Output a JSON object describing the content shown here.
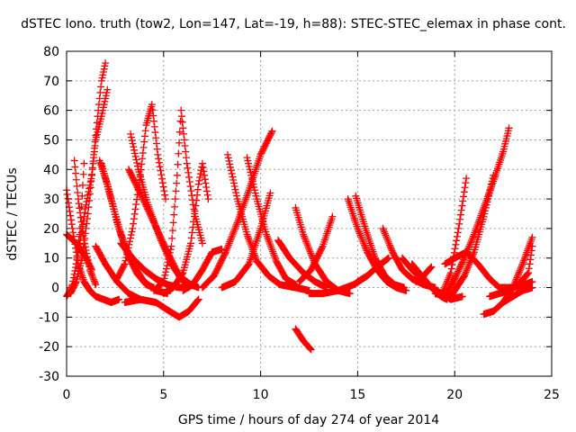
{
  "chart_data": {
    "type": "scatter",
    "title": "dSTEC Iono. truth (tow2, Lon=147, Lat=-19, h=88): STEC-STEC_elemax in phase cont.",
    "xlabel": "GPS time / hours of day 274 of year 2014",
    "ylabel": "dSTEC  / TECUs",
    "xlim": [
      0,
      25
    ],
    "ylim": [
      -30,
      80
    ],
    "xticks": [
      0,
      5,
      10,
      15,
      20,
      25
    ],
    "yticks": [
      -30,
      -20,
      -10,
      0,
      10,
      20,
      30,
      40,
      50,
      60,
      70,
      80
    ],
    "grid": true,
    "marker": "plus",
    "color": "#ff0000",
    "series": [
      {
        "x": [
          0.0,
          0.3,
          0.6,
          0.9,
          1.2,
          1.5,
          1.9,
          2.3,
          2.7
        ],
        "y": [
          33,
          20,
          8,
          2,
          -1,
          -3,
          -4,
          -5,
          -4
        ]
      },
      {
        "x": [
          0.0,
          0.1,
          0.3,
          0.5,
          0.7,
          0.9
        ],
        "y": [
          -3,
          -2,
          1,
          8,
          20,
          42
        ]
      },
      {
        "x": [
          0.0,
          0.5,
          1.0,
          1.3
        ],
        "y": [
          18,
          15,
          10,
          6
        ]
      },
      {
        "x": [
          0.4,
          0.6,
          0.9,
          1.2,
          1.5
        ],
        "y": [
          43,
          30,
          16,
          6,
          1
        ]
      },
      {
        "x": [
          0.2,
          0.5,
          0.8,
          1.1,
          1.4,
          1.6,
          1.8,
          2.0
        ],
        "y": [
          -2,
          2,
          10,
          25,
          45,
          58,
          70,
          76
        ]
      },
      {
        "x": [
          0.5,
          0.8,
          1.0,
          1.3,
          1.5,
          1.8,
          2.1
        ],
        "y": [
          8,
          20,
          28,
          38,
          50,
          58,
          67
        ]
      },
      {
        "x": [
          1.7,
          2.1,
          2.6,
          3.1,
          3.6,
          4.1,
          4.5
        ],
        "y": [
          43,
          35,
          22,
          12,
          5,
          1,
          0
        ]
      },
      {
        "x": [
          1.8,
          2.3,
          2.8,
          3.4,
          4.0,
          4.6,
          5.2
        ],
        "y": [
          42,
          30,
          18,
          8,
          2,
          -1,
          -2
        ]
      },
      {
        "x": [
          1.5,
          2.0,
          2.6,
          3.2,
          3.8
        ],
        "y": [
          14,
          8,
          2,
          -2,
          -4
        ]
      },
      {
        "x": [
          2.6,
          3.0,
          3.4,
          3.8,
          4.1,
          4.4,
          4.7,
          5.1
        ],
        "y": [
          3,
          8,
          20,
          38,
          55,
          62,
          45,
          30
        ]
      },
      {
        "x": [
          3.3,
          3.7,
          4.2,
          4.8,
          5.4,
          6.0,
          6.8
        ],
        "y": [
          52,
          40,
          28,
          17,
          8,
          2,
          0
        ]
      },
      {
        "x": [
          3.2,
          3.8,
          4.5,
          5.2,
          5.8,
          6.4
        ],
        "y": [
          40,
          32,
          22,
          12,
          4,
          1
        ]
      },
      {
        "x": [
          2.8,
          3.4,
          4.0,
          4.6,
          5.2,
          5.8,
          6.3
        ],
        "y": [
          15,
          10,
          6,
          3,
          1,
          0,
          0
        ]
      },
      {
        "x": [
          3.0,
          3.8,
          4.6,
          5.3,
          5.8,
          6.3,
          6.8
        ],
        "y": [
          -5,
          -4,
          -5,
          -8,
          -10,
          -8,
          -4
        ]
      },
      {
        "x": [
          4.5,
          5.0,
          5.4,
          5.7,
          5.9,
          6.2,
          6.6,
          7.0
        ],
        "y": [
          -1,
          2,
          14,
          38,
          60,
          42,
          25,
          15
        ]
      },
      {
        "x": [
          5.0,
          5.5,
          6.0,
          6.4,
          6.8,
          7.0,
          7.3
        ],
        "y": [
          -2,
          0,
          5,
          15,
          35,
          42,
          30
        ]
      },
      {
        "x": [
          6.0,
          6.5,
          7.0,
          7.5,
          8.0
        ],
        "y": [
          -1,
          1,
          6,
          12,
          13
        ]
      },
      {
        "x": [
          7.0,
          7.6,
          8.2,
          8.8,
          9.4,
          10.0,
          10.6
        ],
        "y": [
          0,
          4,
          12,
          22,
          33,
          45,
          53
        ]
      },
      {
        "x": [
          8.3,
          8.8,
          9.3,
          9.8,
          10.4,
          11.0,
          11.8,
          12.5
        ],
        "y": [
          45,
          30,
          18,
          9,
          4,
          1,
          0,
          -1
        ]
      },
      {
        "x": [
          9.3,
          9.8,
          10.3,
          10.8,
          11.3,
          11.8
        ],
        "y": [
          44,
          30,
          18,
          9,
          3,
          1
        ]
      },
      {
        "x": [
          8.0,
          8.7,
          9.4,
          10.0,
          10.5
        ],
        "y": [
          0,
          2,
          8,
          20,
          32
        ]
      },
      {
        "x": [
          10.9,
          11.5,
          12.2,
          12.8,
          13.4
        ],
        "y": [
          16,
          10,
          5,
          2,
          0
        ]
      },
      {
        "x": [
          11.8,
          12.2,
          12.8,
          13.4,
          14.0,
          14.6
        ],
        "y": [
          27,
          18,
          8,
          2,
          -1,
          -2
        ]
      },
      {
        "x": [
          11.8,
          12.2,
          12.6
        ],
        "y": [
          -14,
          -18,
          -21
        ]
      },
      {
        "x": [
          12.0,
          12.6,
          13.2,
          13.7
        ],
        "y": [
          2,
          6,
          14,
          24
        ]
      },
      {
        "x": [
          12.5,
          13.2,
          14.0,
          14.8,
          15.5
        ],
        "y": [
          -2,
          -2,
          -1,
          1,
          4
        ]
      },
      {
        "x": [
          14.5,
          15.0,
          15.5,
          16.0,
          16.5,
          17.0,
          17.5
        ],
        "y": [
          30,
          20,
          12,
          6,
          2,
          0,
          -1
        ]
      },
      {
        "x": [
          14.9,
          15.4,
          15.9,
          16.4,
          16.9,
          17.4
        ],
        "y": [
          31,
          20,
          10,
          4,
          1,
          0
        ]
      },
      {
        "x": [
          16.3,
          16.8,
          17.3,
          17.8,
          18.4,
          19.0
        ],
        "y": [
          20,
          12,
          6,
          3,
          1,
          0
        ]
      },
      {
        "x": [
          15.0,
          15.5,
          16.0,
          16.6
        ],
        "y": [
          2,
          4,
          7,
          10
        ]
      },
      {
        "x": [
          17.3,
          17.8,
          18.3,
          18.8,
          19.3,
          19.8,
          20.4
        ],
        "y": [
          10,
          6,
          3,
          0,
          -2,
          -4,
          -3
        ]
      },
      {
        "x": [
          17.8,
          18.3,
          18.8,
          19.3,
          19.6
        ],
        "y": [
          8,
          4,
          0,
          -3,
          -4
        ]
      },
      {
        "x": [
          18.0,
          18.4,
          18.8
        ],
        "y": [
          2,
          4,
          7
        ]
      },
      {
        "x": [
          19.0,
          19.5,
          20.0,
          20.5,
          21.0,
          21.5,
          22.0,
          22.5,
          22.8
        ],
        "y": [
          -2,
          -3,
          3,
          10,
          18,
          27,
          36,
          46,
          54
        ]
      },
      {
        "x": [
          19.3,
          19.8,
          20.2,
          20.6
        ],
        "y": [
          -3,
          5,
          20,
          37
        ]
      },
      {
        "x": [
          19.8,
          20.5,
          21.0,
          21.5,
          22.0
        ],
        "y": [
          -3,
          4,
          12,
          24,
          38
        ]
      },
      {
        "x": [
          19.5,
          20.0,
          20.6,
          21.2,
          21.8,
          22.3,
          23.0,
          23.6,
          24.0
        ],
        "y": [
          8,
          10,
          12,
          8,
          3,
          0,
          0,
          1,
          2
        ]
      },
      {
        "x": [
          21.5,
          22.0,
          22.5,
          23.0,
          23.5,
          24.0
        ],
        "y": [
          -9,
          -8,
          -5,
          0,
          8,
          17
        ]
      },
      {
        "x": [
          21.8,
          22.3,
          22.8,
          23.3,
          23.8,
          24.0
        ],
        "y": [
          -3,
          -2,
          -1,
          1,
          5,
          14
        ]
      },
      {
        "x": [
          22.5,
          23.0,
          23.5,
          24.0
        ],
        "y": [
          -5,
          -3,
          -1,
          0
        ]
      }
    ]
  }
}
